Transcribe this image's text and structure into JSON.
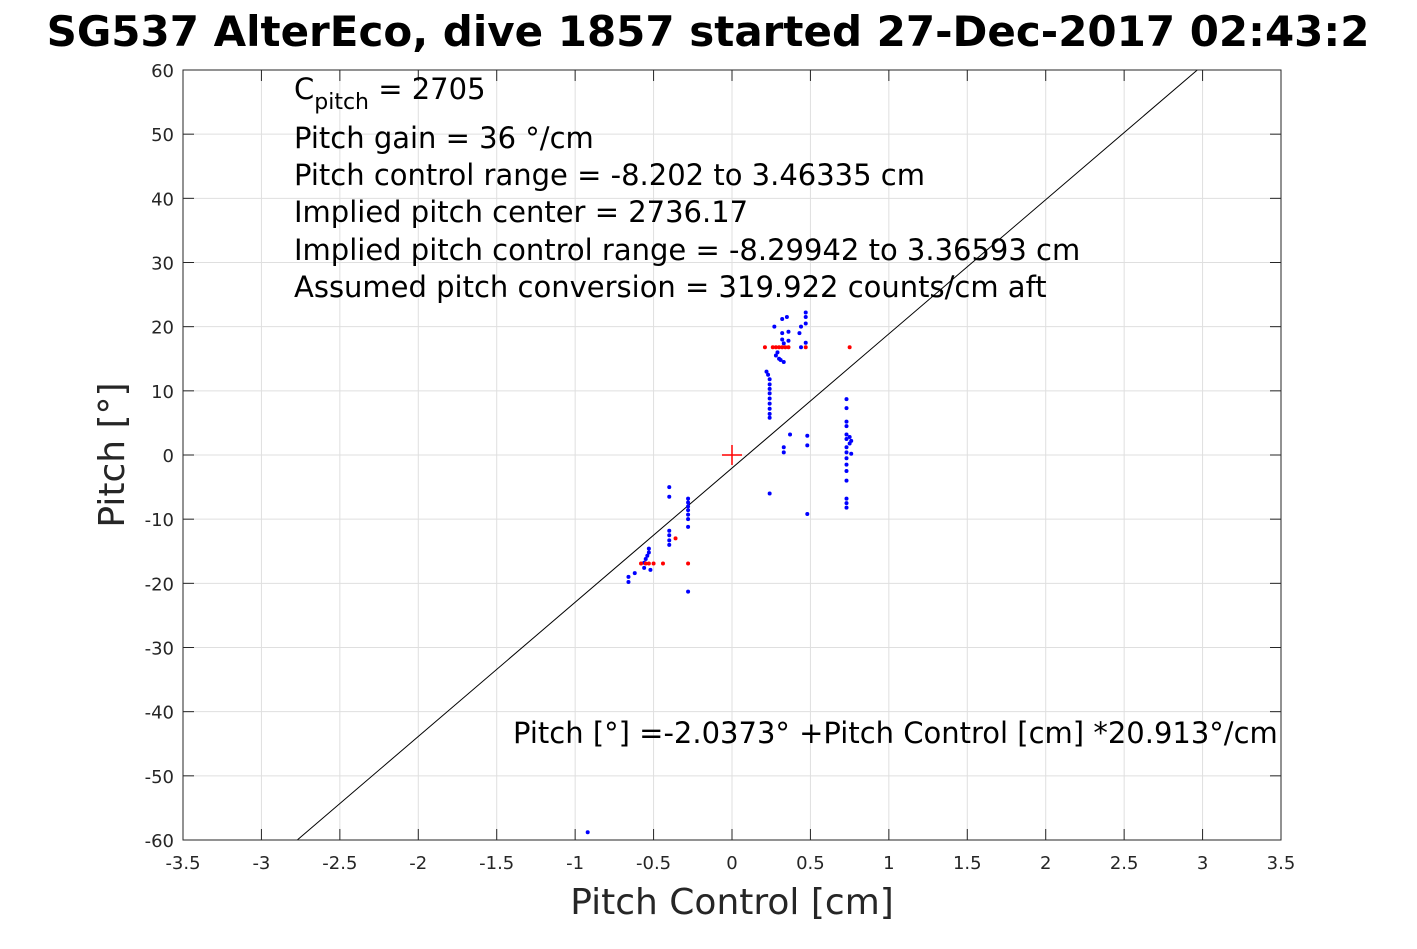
{
  "chart_data": {
    "type": "scatter",
    "title": "SG537 AlterEco, dive 1857 started 27-Dec-2017 02:43:2",
    "xlabel": "Pitch Control [cm]",
    "ylabel": "Pitch [°]",
    "xlim": [
      -3.5,
      3.5
    ],
    "ylim": [
      -60,
      60
    ],
    "xticks": [
      -3.5,
      -3,
      -2.5,
      -2,
      -1.5,
      -1,
      -0.5,
      0,
      0.5,
      1,
      1.5,
      2,
      2.5,
      3,
      3.5
    ],
    "xtick_labels": [
      "-3.5",
      "-3",
      "-2.5",
      "-2",
      "-1.5",
      "-1",
      "-0.5",
      "0",
      "0.5",
      "1",
      "1.5",
      "2",
      "2.5",
      "3",
      "3.5"
    ],
    "yticks": [
      -60,
      -50,
      -40,
      -30,
      -20,
      -10,
      0,
      10,
      20,
      30,
      40,
      50,
      60
    ],
    "ytick_labels": [
      "-60",
      "-50",
      "-40",
      "-30",
      "-20",
      "-10",
      "0",
      "10",
      "20",
      "30",
      "40",
      "50",
      "60"
    ],
    "grid": true,
    "annotations": {
      "cpitch_base": "C",
      "cpitch_sub": "pitch",
      "cpitch_value": " = 2705",
      "pitch_gain": "Pitch gain = 36 °/cm",
      "control_range": "Pitch control range = -8.202 to 3.46335 cm",
      "implied_center": "Implied pitch center = 2736.17",
      "implied_range": "Implied pitch control range = -8.29942 to 3.36593 cm",
      "conversion": "Assumed pitch conversion = 319.922 counts/cm aft",
      "fit_equation": "Pitch [°] =-2.0373° +Pitch Control [cm] *20.913°/cm"
    },
    "fit_line": {
      "intercept": -2.0373,
      "slope": 20.913,
      "color": "#000000"
    },
    "center_marker": {
      "x": 0,
      "y": 0,
      "color": "#ff0000"
    },
    "series": [
      {
        "color": "#0000ff",
        "points": [
          [
            -0.92,
            -58.8
          ],
          [
            -0.66,
            -19.8
          ],
          [
            -0.66,
            -19.0
          ],
          [
            -0.62,
            -18.4
          ],
          [
            -0.56,
            -17.6
          ],
          [
            -0.56,
            -16.8
          ],
          [
            -0.55,
            -16.2
          ],
          [
            -0.54,
            -15.7
          ],
          [
            -0.53,
            -15.2
          ],
          [
            -0.53,
            -14.6
          ],
          [
            -0.52,
            -17.9
          ],
          [
            -0.4,
            -5.0
          ],
          [
            -0.4,
            -6.5
          ],
          [
            -0.4,
            -11.8
          ],
          [
            -0.4,
            -12.5
          ],
          [
            -0.4,
            -13.3
          ],
          [
            -0.4,
            -14.0
          ],
          [
            -0.28,
            -6.8
          ],
          [
            -0.28,
            -7.4
          ],
          [
            -0.28,
            -8.0
          ],
          [
            -0.28,
            -8.6
          ],
          [
            -0.28,
            -9.3
          ],
          [
            -0.28,
            -10.0
          ],
          [
            -0.28,
            -11.2
          ],
          [
            -0.28,
            -21.3
          ],
          [
            0.22,
            13.0
          ],
          [
            0.23,
            12.5
          ],
          [
            0.24,
            11.8
          ],
          [
            0.24,
            11.0
          ],
          [
            0.24,
            10.3
          ],
          [
            0.24,
            9.6
          ],
          [
            0.24,
            8.8
          ],
          [
            0.24,
            8.0
          ],
          [
            0.24,
            7.2
          ],
          [
            0.24,
            6.4
          ],
          [
            0.24,
            5.8
          ],
          [
            0.24,
            -6.0
          ],
          [
            0.27,
            20.0
          ],
          [
            0.28,
            15.5
          ],
          [
            0.29,
            16.0
          ],
          [
            0.3,
            15.0
          ],
          [
            0.31,
            14.8
          ],
          [
            0.32,
            19.0
          ],
          [
            0.32,
            18.0
          ],
          [
            0.32,
            21.2
          ],
          [
            0.33,
            17.4
          ],
          [
            0.33,
            14.5
          ],
          [
            0.33,
            1.2
          ],
          [
            0.33,
            0.4
          ],
          [
            0.35,
            21.5
          ],
          [
            0.36,
            19.2
          ],
          [
            0.36,
            17.8
          ],
          [
            0.37,
            3.2
          ],
          [
            0.43,
            19.0
          ],
          [
            0.44,
            20.0
          ],
          [
            0.44,
            16.8
          ],
          [
            0.47,
            22.2
          ],
          [
            0.47,
            21.5
          ],
          [
            0.47,
            20.5
          ],
          [
            0.47,
            17.5
          ],
          [
            0.48,
            3.0
          ],
          [
            0.48,
            1.5
          ],
          [
            0.48,
            -9.2
          ],
          [
            0.73,
            8.7
          ],
          [
            0.73,
            7.3
          ],
          [
            0.73,
            5.2
          ],
          [
            0.73,
            4.5
          ],
          [
            0.73,
            3.2
          ],
          [
            0.73,
            2.5
          ],
          [
            0.73,
            1.2
          ],
          [
            0.73,
            0.4
          ],
          [
            0.73,
            -0.5
          ],
          [
            0.73,
            -1.5
          ],
          [
            0.73,
            -2.5
          ],
          [
            0.73,
            -4.0
          ],
          [
            0.73,
            -6.8
          ],
          [
            0.73,
            -7.5
          ],
          [
            0.73,
            -8.2
          ],
          [
            0.75,
            2.8
          ],
          [
            0.75,
            1.8
          ],
          [
            0.76,
            0.2
          ],
          [
            0.76,
            2.2
          ]
        ]
      },
      {
        "color": "#ff0000",
        "points": [
          [
            -0.58,
            -16.9
          ],
          [
            -0.55,
            -16.9
          ],
          [
            -0.53,
            -16.9
          ],
          [
            -0.5,
            -16.9
          ],
          [
            -0.44,
            -16.9
          ],
          [
            -0.36,
            -13.0
          ],
          [
            -0.28,
            -16.9
          ],
          [
            0.21,
            16.8
          ],
          [
            0.26,
            16.8
          ],
          [
            0.28,
            16.8
          ],
          [
            0.3,
            16.8
          ],
          [
            0.32,
            16.8
          ],
          [
            0.34,
            16.8
          ],
          [
            0.36,
            16.8
          ],
          [
            0.47,
            16.8
          ],
          [
            0.75,
            16.8
          ]
        ]
      }
    ]
  }
}
